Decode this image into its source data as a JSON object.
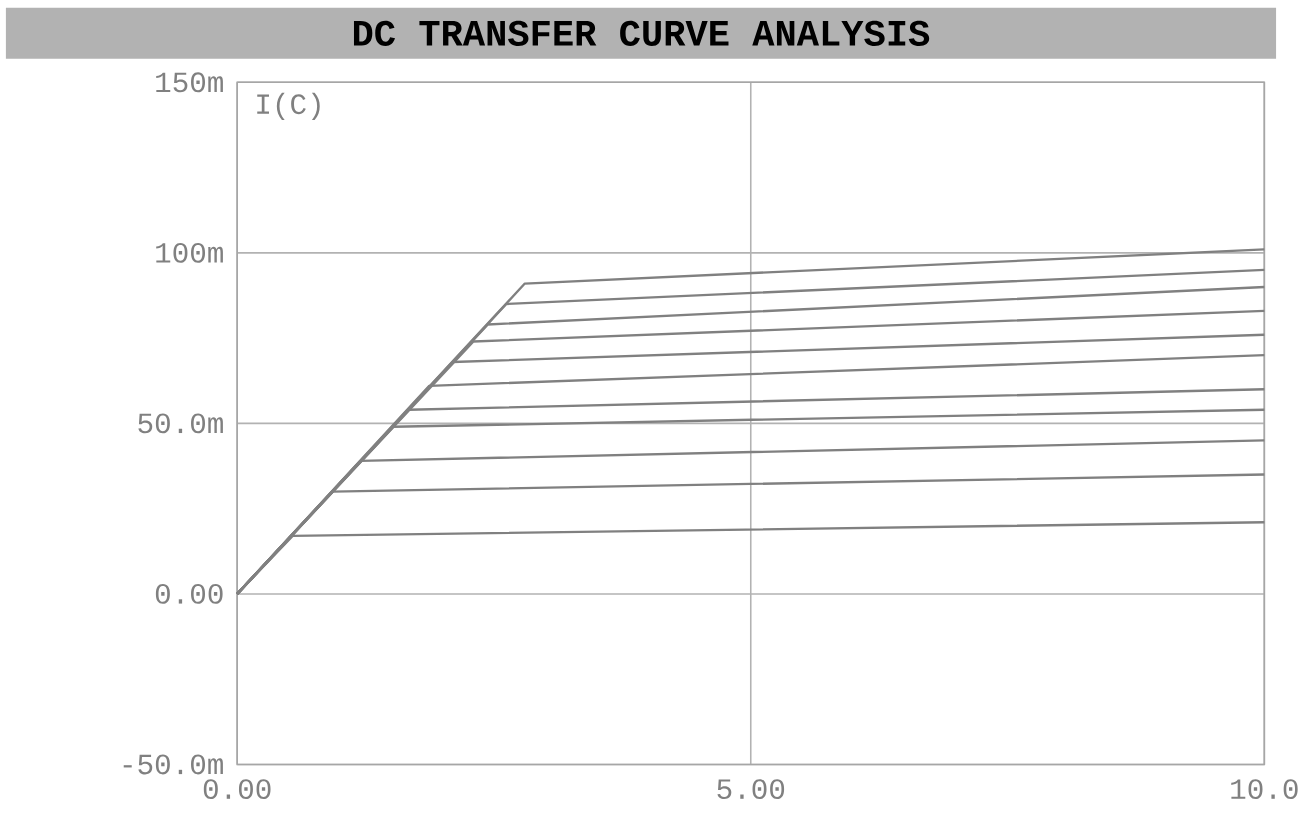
{
  "chart_data": {
    "type": "line",
    "title": "DC TRANSFER CURVE ANALYSIS",
    "ylabel": "I(C)",
    "xlim": [
      0,
      10
    ],
    "ylim": [
      -50,
      150
    ],
    "xticks": [
      {
        "value": 0,
        "label": "0.00"
      },
      {
        "value": 5,
        "label": "5.00"
      },
      {
        "value": 10,
        "label": "10.0"
      }
    ],
    "yticks": [
      {
        "value": -50,
        "label": "-50.0m"
      },
      {
        "value": 0,
        "label": "0.00"
      },
      {
        "value": 50,
        "label": "50.0m"
      },
      {
        "value": 100,
        "label": "100m"
      },
      {
        "value": 150,
        "label": "150m"
      }
    ],
    "grid": true,
    "line_style": "solid",
    "series": [
      {
        "color": "#808080",
        "x": [
          0,
          0.54,
          10
        ],
        "values": [
          0,
          17,
          21
        ]
      },
      {
        "color": "#808080",
        "x": [
          0,
          0.93,
          10
        ],
        "values": [
          0,
          30,
          35
        ]
      },
      {
        "color": "#808080",
        "x": [
          0,
          1.2,
          10
        ],
        "values": [
          0,
          39,
          45
        ]
      },
      {
        "color": "#808080",
        "x": [
          0,
          1.52,
          10
        ],
        "values": [
          0,
          49,
          54
        ]
      },
      {
        "color": "#808080",
        "x": [
          0,
          1.67,
          10
        ],
        "values": [
          0,
          54,
          60
        ]
      },
      {
        "color": "#808080",
        "x": [
          0,
          1.87,
          10
        ],
        "values": [
          0,
          61,
          70
        ]
      },
      {
        "color": "#808080",
        "x": [
          0,
          2.1,
          10
        ],
        "values": [
          0,
          68,
          76
        ]
      },
      {
        "color": "#808080",
        "x": [
          0,
          2.3,
          10
        ],
        "values": [
          0,
          74,
          83
        ]
      },
      {
        "color": "#808080",
        "x": [
          0,
          2.44,
          10
        ],
        "values": [
          0,
          79,
          90
        ]
      },
      {
        "color": "#808080",
        "x": [
          0,
          2.62,
          10
        ],
        "values": [
          0,
          85,
          95
        ]
      },
      {
        "color": "#808080",
        "x": [
          0,
          2.8,
          10
        ],
        "values": [
          0,
          91,
          101
        ]
      }
    ]
  }
}
